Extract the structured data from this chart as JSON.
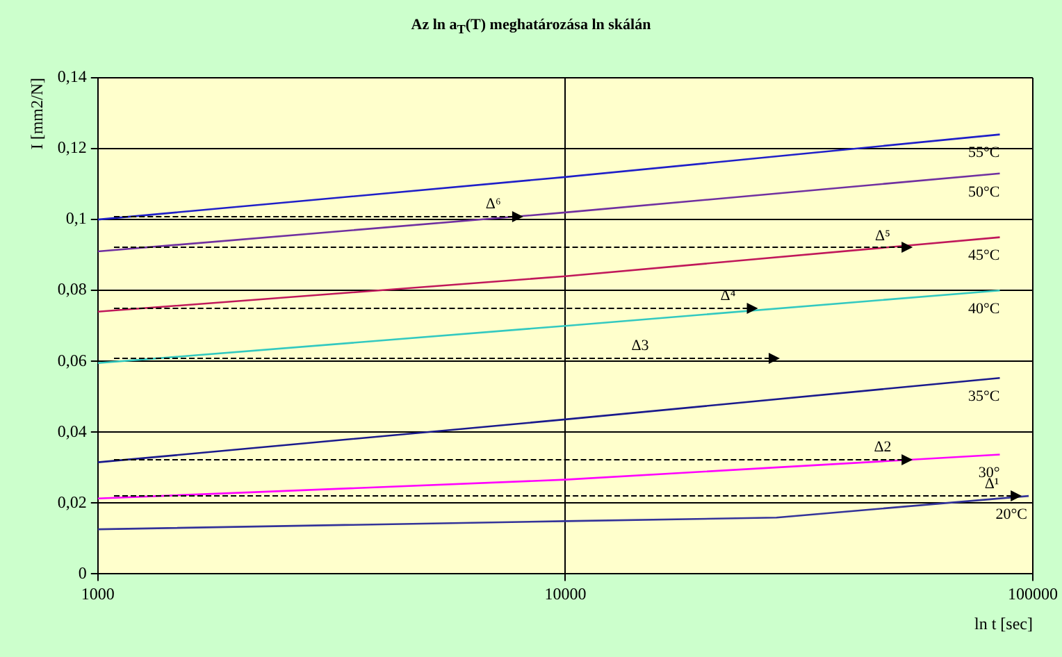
{
  "chart_data": {
    "type": "line",
    "title": "Az ln a$_{T}$(T) meghatározása ln skálán",
    "xlabel": "ln t [sec]",
    "ylabel": "I [mm2/N]",
    "log": "x",
    "xlim": [
      1000,
      100000
    ],
    "xticks": [
      1000,
      10000,
      100000
    ],
    "ylim": [
      0,
      0.14
    ],
    "yticks": [
      {
        "value": 0,
        "label": "0"
      },
      {
        "value": 0.02,
        "label": "0,02"
      },
      {
        "value": 0.04,
        "label": "0,04"
      },
      {
        "value": 0.06,
        "label": "0,06"
      },
      {
        "value": 0.08,
        "label": "0,08"
      },
      {
        "value": 0.1,
        "label": "0,1"
      },
      {
        "value": 0.12,
        "label": "0,12"
      },
      {
        "value": 0.14,
        "label": "0,14"
      }
    ],
    "grid": true,
    "legend": false,
    "marker": "none",
    "line_style": "solid",
    "series": [
      {
        "name": "55°C",
        "color": "#1f1fc8",
        "x": [
          1000,
          10000,
          85000
        ],
        "values": [
          0.1,
          0.112,
          0.124
        ]
      },
      {
        "name": "50°C",
        "color": "#7030a0",
        "x": [
          1000,
          10000,
          85000
        ],
        "values": [
          0.091,
          0.102,
          0.113
        ]
      },
      {
        "name": "45°C",
        "color": "#c0185a",
        "x": [
          1000,
          10000,
          85000
        ],
        "values": [
          0.074,
          0.084,
          0.095
        ]
      },
      {
        "name": "40°C",
        "color": "#33c9c0",
        "x": [
          1000,
          10000,
          85000
        ],
        "values": [
          0.0595,
          0.07,
          0.08
        ]
      },
      {
        "name": "35°C",
        "color": "#1a1a8c",
        "x": [
          1000,
          10000,
          85000
        ],
        "values": [
          0.0315,
          0.0436,
          0.0553
        ]
      },
      {
        "name": "30°",
        "color": "#ff00ff",
        "x": [
          1000,
          10000,
          85000
        ],
        "values": [
          0.0213,
          0.0266,
          0.0337
        ]
      },
      {
        "name": "20°C",
        "color": "#333399",
        "x": [
          1000,
          10000,
          28300,
          98000
        ],
        "values": [
          0.0126,
          0.0149,
          0.0159,
          0.022
        ]
      }
    ],
    "annotations": [
      {
        "text": "Δ⁶",
        "x": 8150,
        "y": 0.101
      },
      {
        "text": "Δ⁵",
        "x": 55500,
        "y": 0.092
      },
      {
        "text": "Δ⁴",
        "x": 25900,
        "y": 0.075
      },
      "Δ3",
      {
        "text": "Δ2",
        "x": 55500,
        "y": 0.0324
      },
      {
        "text": "Δ¹",
        "x": 95000,
        "y": 0.022
      }
    ]
  }
}
